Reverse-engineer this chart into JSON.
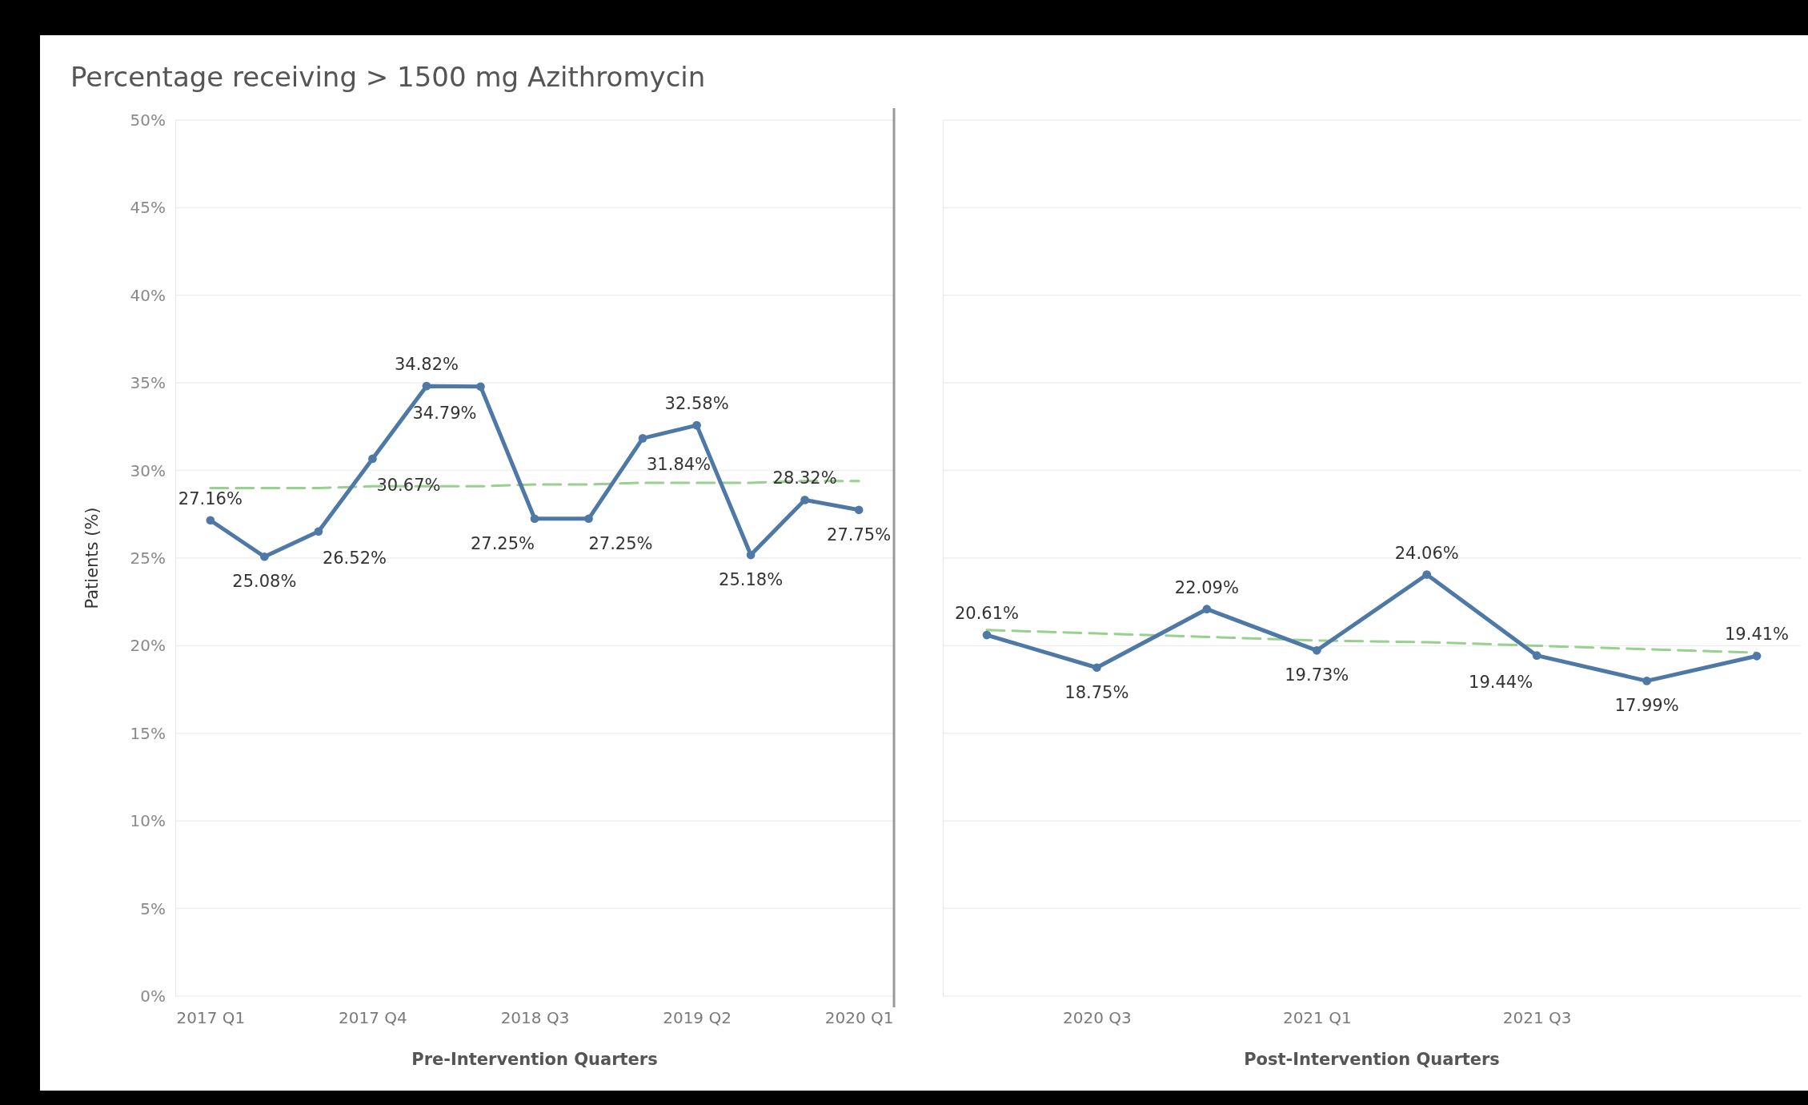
{
  "chart_data": [
    {
      "type": "line",
      "title": "Percentage receiving > 1500 mg Azithromycin",
      "xlabel": "Pre-Intervention Quarters",
      "ylabel": "Patients (%)",
      "categories": [
        "2017 Q1",
        null,
        null,
        "2017 Q4",
        null,
        null,
        "2018 Q3",
        null,
        null,
        "2019 Q2",
        null,
        null,
        "2020 Q1"
      ],
      "ylim": [
        0,
        50
      ],
      "yticks": [
        {
          "value": 0,
          "label": "0%"
        },
        {
          "value": 5,
          "label": "5%"
        },
        {
          "value": 10,
          "label": "10%"
        },
        {
          "value": 15,
          "label": "15%"
        },
        {
          "value": 20,
          "label": "20%"
        },
        {
          "value": 25,
          "label": "25%"
        },
        {
          "value": 30,
          "label": "30%"
        },
        {
          "value": 35,
          "label": "35%"
        },
        {
          "value": 40,
          "label": "40%"
        },
        {
          "value": 45,
          "label": "45%"
        },
        {
          "value": 50,
          "label": "50%"
        }
      ],
      "grid": "y",
      "series": [
        {
          "color": "#4e79a7",
          "marker": "circle",
          "line_style": "solid",
          "values": [
            27.16,
            25.08,
            26.52,
            30.67,
            34.82,
            34.79,
            27.25,
            27.25,
            31.84,
            32.58,
            25.18,
            28.32,
            27.75
          ],
          "value_labels": [
            "27.16%",
            "25.08%",
            "26.52%",
            "30.67%",
            "34.82%",
            "34.79%",
            "27.25%",
            "27.25%",
            "31.84%",
            "32.58%",
            "25.18%",
            "28.32%",
            "27.75%"
          ]
        },
        {
          "color": "#98d08e",
          "marker": "none",
          "line_style": "dashed",
          "values": [
            29.0,
            29.0,
            29.0,
            29.1,
            29.1,
            29.1,
            29.2,
            29.2,
            29.3,
            29.3,
            29.3,
            29.4,
            29.4
          ]
        }
      ]
    },
    {
      "type": "line",
      "xlabel": "Post-Intervention Quarters",
      "categories": [
        null,
        "2020 Q3",
        null,
        "2021 Q1",
        null,
        "2021 Q3",
        null,
        null
      ],
      "ylim": [
        0,
        50
      ],
      "tick_labels": "x",
      "grid": "y",
      "series": [
        {
          "color": "#4e79a7",
          "marker": "circle",
          "line_style": "solid",
          "values": [
            20.61,
            18.75,
            22.09,
            19.73,
            24.06,
            19.44,
            17.99,
            19.41
          ],
          "value_labels": [
            "20.61%",
            "18.75%",
            "22.09%",
            "19.73%",
            "24.06%",
            "19.44%",
            "17.99%",
            "19.41%"
          ]
        },
        {
          "color": "#98d08e",
          "marker": "none",
          "line_style": "dashed",
          "values": [
            20.9,
            20.7,
            20.5,
            20.3,
            20.2,
            20.0,
            19.8,
            19.6
          ]
        }
      ]
    }
  ]
}
